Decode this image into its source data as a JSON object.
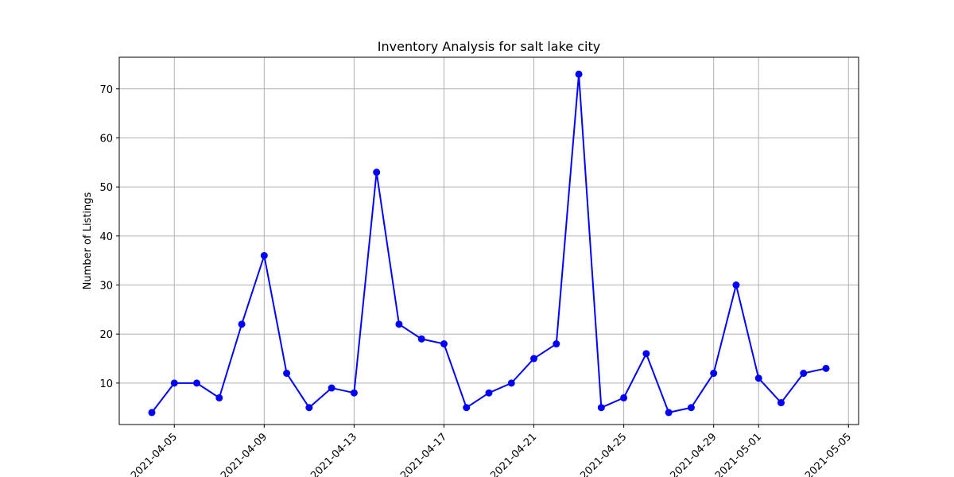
{
  "chart_data": {
    "type": "line",
    "title": "Inventory Analysis for salt lake city",
    "xlabel": "",
    "ylabel": "Number of Listings",
    "x": [
      "2021-04-04",
      "2021-04-05",
      "2021-04-06",
      "2021-04-07",
      "2021-04-08",
      "2021-04-09",
      "2021-04-10",
      "2021-04-11",
      "2021-04-12",
      "2021-04-13",
      "2021-04-14",
      "2021-04-15",
      "2021-04-16",
      "2021-04-17",
      "2021-04-18",
      "2021-04-19",
      "2021-04-20",
      "2021-04-21",
      "2021-04-22",
      "2021-04-23",
      "2021-04-24",
      "2021-04-25",
      "2021-04-26",
      "2021-04-27",
      "2021-04-28",
      "2021-04-29",
      "2021-04-30",
      "2021-05-01",
      "2021-05-02",
      "2021-05-03",
      "2021-05-04"
    ],
    "series": [
      {
        "values": [
          4,
          10,
          10,
          7,
          22,
          36,
          12,
          5,
          9,
          8,
          53,
          22,
          19,
          18,
          5,
          8,
          10,
          15,
          18,
          73,
          5,
          7,
          16,
          4,
          5,
          12,
          30,
          11,
          6,
          12,
          13
        ]
      }
    ],
    "xlim": [
      "2021-04-02.55",
      "2021-05-05.45"
    ],
    "ylim": [
      1.55,
      76.45
    ],
    "xticks": [
      "2021-04-05",
      "2021-04-09",
      "2021-04-13",
      "2021-04-17",
      "2021-04-21",
      "2021-04-25",
      "2021-04-29",
      "2021-05-01",
      "2021-05-05"
    ],
    "yticks": [
      10,
      20,
      30,
      40,
      50,
      60,
      70
    ],
    "grid": true,
    "line_color": "#0000ff",
    "marker": "circle"
  }
}
